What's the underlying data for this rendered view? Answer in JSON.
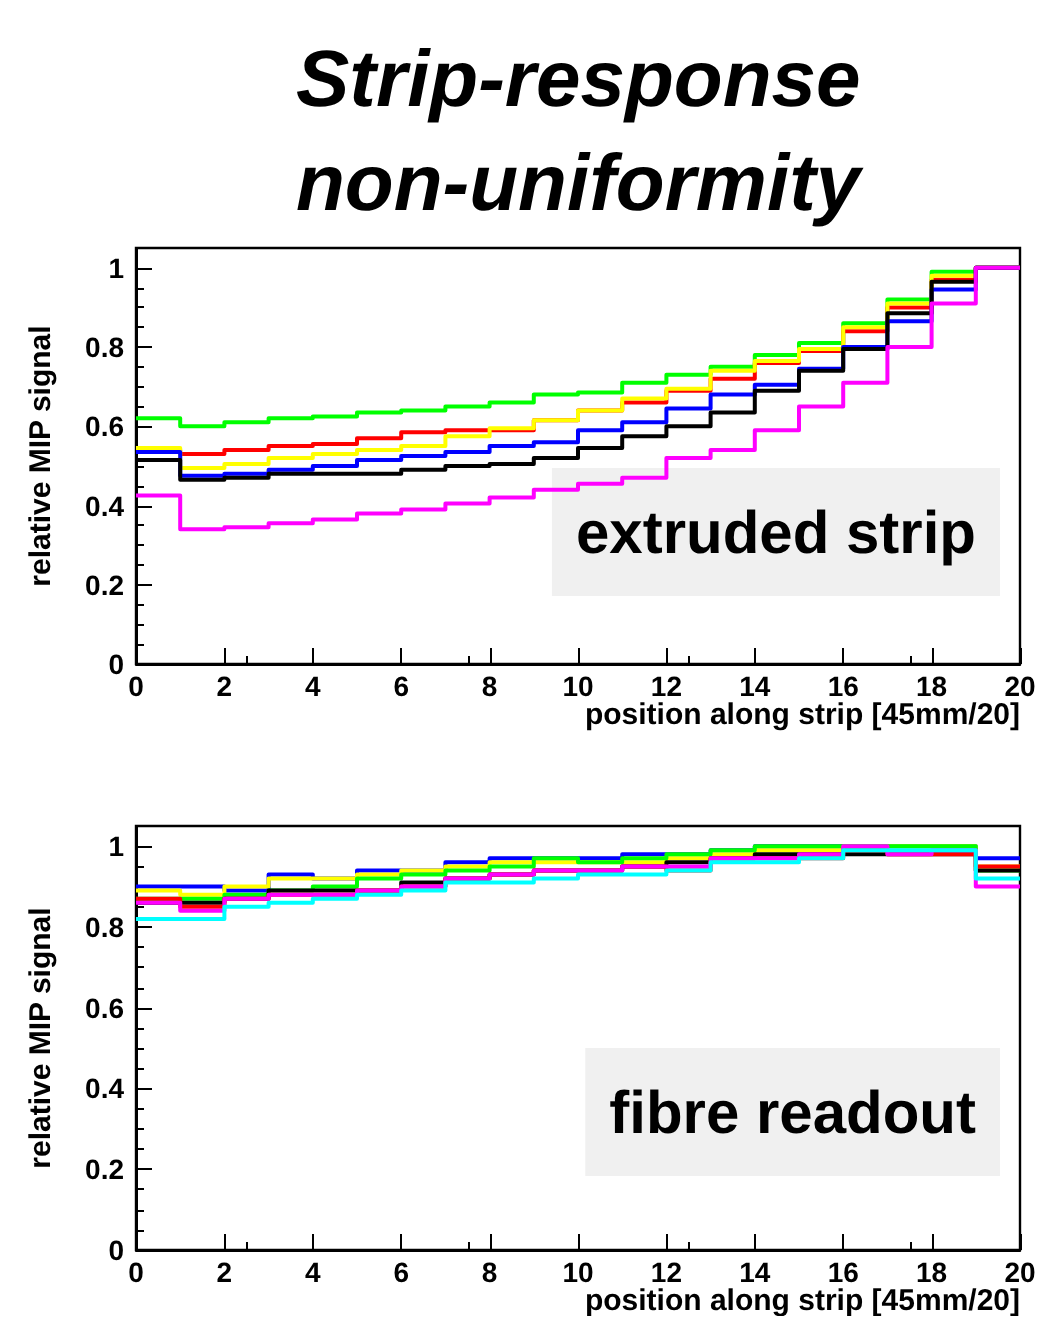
{
  "chart_data": [
    {
      "type": "histogram",
      "title": "Strip-response non-uniformity",
      "xlabel": "position along strip [45mm/20]",
      "ylabel": "relative MIP signal",
      "annotations": [
        "extruded strip"
      ],
      "bins": [
        0,
        1,
        2,
        3,
        4,
        5,
        6,
        7,
        8,
        9,
        10,
        11,
        12,
        13,
        14,
        15,
        16,
        17,
        18,
        19,
        20
      ],
      "xlim": [
        0,
        20
      ],
      "xticks": [
        0,
        2,
        4,
        6,
        8,
        10,
        12,
        14,
        16,
        18,
        20
      ],
      "ylim": [
        0,
        1.05
      ],
      "yticks": [
        0,
        0.2,
        0.4,
        0.6,
        0.8,
        1
      ],
      "series": [
        {
          "color": "#00ff00",
          "values": [
            0.62,
            0.6,
            0.61,
            0.62,
            0.625,
            0.635,
            0.64,
            0.65,
            0.66,
            0.68,
            0.685,
            0.71,
            0.73,
            0.75,
            0.78,
            0.81,
            0.86,
            0.92,
            0.99,
            1.0
          ]
        },
        {
          "color": "#ff0000",
          "values": [
            0.54,
            0.53,
            0.54,
            0.55,
            0.555,
            0.57,
            0.585,
            0.59,
            0.59,
            0.615,
            0.64,
            0.66,
            0.69,
            0.72,
            0.76,
            0.79,
            0.84,
            0.9,
            0.97,
            1.0
          ]
        },
        {
          "color": "#ffff00",
          "values": [
            0.545,
            0.495,
            0.505,
            0.52,
            0.53,
            0.54,
            0.55,
            0.575,
            0.595,
            0.615,
            0.64,
            0.67,
            0.695,
            0.74,
            0.765,
            0.795,
            0.85,
            0.91,
            0.98,
            1.0
          ]
        },
        {
          "color": "#0000ff",
          "values": [
            0.535,
            0.475,
            0.48,
            0.49,
            0.5,
            0.515,
            0.525,
            0.535,
            0.55,
            0.56,
            0.59,
            0.61,
            0.645,
            0.68,
            0.705,
            0.745,
            0.8,
            0.865,
            0.945,
            1.0
          ]
        },
        {
          "color": "#000000",
          "values": [
            0.515,
            0.465,
            0.47,
            0.48,
            0.48,
            0.48,
            0.49,
            0.5,
            0.505,
            0.52,
            0.545,
            0.575,
            0.6,
            0.635,
            0.69,
            0.74,
            0.795,
            0.885,
            0.965,
            1.0
          ]
        },
        {
          "color": "#ff00ff",
          "values": [
            0.425,
            0.34,
            0.345,
            0.355,
            0.365,
            0.38,
            0.39,
            0.405,
            0.42,
            0.44,
            0.455,
            0.47,
            0.52,
            0.54,
            0.59,
            0.65,
            0.71,
            0.8,
            0.91,
            1.0
          ]
        }
      ]
    },
    {
      "type": "histogram",
      "xlabel": "position along strip [45mm/20]",
      "ylabel": "relative MIP signal",
      "annotations": [
        "fibre readout"
      ],
      "bins": [
        0,
        1,
        2,
        3,
        4,
        5,
        6,
        7,
        8,
        9,
        10,
        11,
        12,
        13,
        14,
        15,
        16,
        17,
        18,
        19,
        20
      ],
      "xlim": [
        0,
        20
      ],
      "xticks": [
        0,
        2,
        4,
        6,
        8,
        10,
        12,
        14,
        16,
        18,
        20
      ],
      "ylim": [
        0,
        1.05
      ],
      "yticks": [
        0,
        0.2,
        0.4,
        0.6,
        0.8,
        1
      ],
      "series": [
        {
          "color": "#0000ff",
          "values": [
            0.9,
            0.9,
            0.89,
            0.93,
            0.92,
            0.94,
            0.94,
            0.96,
            0.97,
            0.97,
            0.97,
            0.98,
            0.98,
            0.99,
            1.0,
            1.0,
            1.0,
            1.0,
            1.0,
            0.97
          ]
        },
        {
          "color": "#ffff00",
          "values": [
            0.89,
            0.88,
            0.9,
            0.92,
            0.92,
            0.93,
            0.94,
            0.95,
            0.96,
            0.96,
            0.96,
            0.96,
            0.97,
            0.98,
            0.99,
            0.99,
            1.0,
            1.0,
            1.0,
            0.95
          ]
        },
        {
          "color": "#00ff00",
          "values": [
            0.87,
            0.87,
            0.88,
            0.89,
            0.9,
            0.92,
            0.93,
            0.94,
            0.95,
            0.97,
            0.96,
            0.97,
            0.98,
            0.99,
            1.0,
            1.0,
            1.0,
            1.0,
            1.0,
            0.94
          ]
        },
        {
          "color": "#000000",
          "values": [
            0.86,
            0.86,
            0.87,
            0.89,
            0.89,
            0.89,
            0.91,
            0.92,
            0.93,
            0.94,
            0.94,
            0.95,
            0.96,
            0.97,
            0.98,
            0.98,
            0.98,
            0.98,
            0.98,
            0.94
          ]
        },
        {
          "color": "#ff0000",
          "values": [
            0.87,
            0.85,
            0.87,
            0.88,
            0.88,
            0.89,
            0.9,
            0.92,
            0.93,
            0.94,
            0.94,
            0.95,
            0.94,
            0.97,
            0.97,
            0.97,
            0.99,
            0.98,
            0.98,
            0.95
          ]
        },
        {
          "color": "#ff00ff",
          "values": [
            0.86,
            0.84,
            0.87,
            0.88,
            0.88,
            0.89,
            0.9,
            0.92,
            0.93,
            0.94,
            0.94,
            0.95,
            0.95,
            0.97,
            0.97,
            0.98,
            1.0,
            0.98,
            0.99,
            0.9
          ]
        },
        {
          "color": "#00ffff",
          "values": [
            0.82,
            0.82,
            0.85,
            0.86,
            0.87,
            0.88,
            0.89,
            0.91,
            0.91,
            0.92,
            0.93,
            0.93,
            0.94,
            0.96,
            0.96,
            0.97,
            0.99,
            0.99,
            0.99,
            0.92
          ]
        }
      ]
    }
  ]
}
